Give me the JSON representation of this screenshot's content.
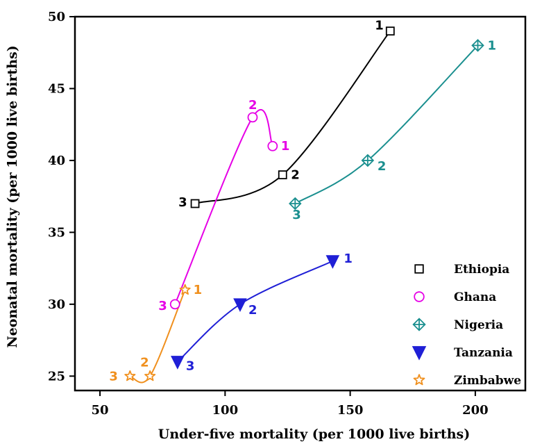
{
  "chart_data": {
    "type": "scatter",
    "xlabel": "Under-five mortality (per 1000 live births)",
    "ylabel": "Neonatal mortality (per 1000 live births)",
    "xlim": [
      40,
      220
    ],
    "ylim": [
      24,
      50
    ],
    "xticks": [
      50,
      100,
      150,
      200
    ],
    "yticks": [
      25,
      30,
      35,
      40,
      45,
      50
    ],
    "legend_position": "bottom-right",
    "series": [
      {
        "name": "Ethiopia",
        "marker": "open-square",
        "color": "#000000",
        "points": [
          {
            "x": 166,
            "y": 49,
            "label": "1"
          },
          {
            "x": 123,
            "y": 39,
            "label": "2"
          },
          {
            "x": 88,
            "y": 37,
            "label": "3"
          }
        ]
      },
      {
        "name": "Ghana",
        "marker": "open-circle",
        "color": "#e600e6",
        "points": [
          {
            "x": 119,
            "y": 41,
            "label": "1"
          },
          {
            "x": 111,
            "y": 43,
            "label": "2"
          },
          {
            "x": 80,
            "y": 30,
            "label": "3"
          }
        ]
      },
      {
        "name": "Nigeria",
        "marker": "diamond-plus",
        "color": "#1a8f8f",
        "points": [
          {
            "x": 201,
            "y": 48,
            "label": "1"
          },
          {
            "x": 157,
            "y": 40,
            "label": "2"
          },
          {
            "x": 128,
            "y": 37,
            "label": "3"
          }
        ]
      },
      {
        "name": "Tanzania",
        "marker": "filled-down-triangle",
        "color": "#1f1fd6",
        "points": [
          {
            "x": 143,
            "y": 33,
            "label": "1"
          },
          {
            "x": 106,
            "y": 30,
            "label": "2"
          },
          {
            "x": 81,
            "y": 26,
            "label": "3"
          }
        ]
      },
      {
        "name": "Zimbabwe",
        "marker": "open-star",
        "color": "#f0901e",
        "points": [
          {
            "x": 84,
            "y": 31,
            "label": "1"
          },
          {
            "x": 70,
            "y": 25,
            "label": "2"
          },
          {
            "x": 62,
            "y": 25,
            "label": "3"
          }
        ]
      }
    ]
  }
}
